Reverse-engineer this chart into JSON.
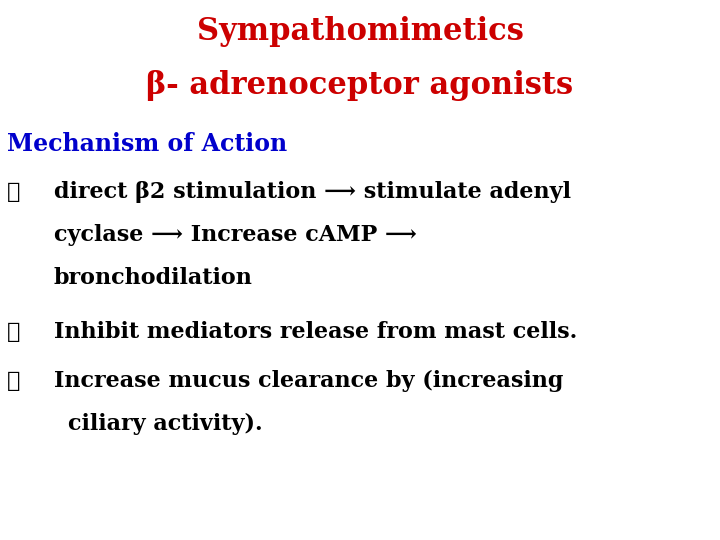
{
  "title_line1": "Sympathomimetics",
  "title_line2": "β- adrenoceptor agonists",
  "title_color": "#cc0000",
  "subtitle": "Mechanism of Action",
  "subtitle_color": "#0000cc",
  "bullet_symbol": "➢",
  "background_color": "#ffffff",
  "title_fontsize": 22,
  "subtitle_fontsize": 17,
  "body_fontsize": 16,
  "bullet1_line1": "direct β2 stimulation ⟶ stimulate adenyl",
  "bullet1_line2": "cyclase ⟶ Increase cAMP ⟶",
  "bullet1_line3": "bronchodilation",
  "bullet2": "Inhibit mediators release from mast cells.",
  "bullet3_line1": "Increase mucus clearance by (increasing",
  "bullet3_line2": "ciliary activity)."
}
